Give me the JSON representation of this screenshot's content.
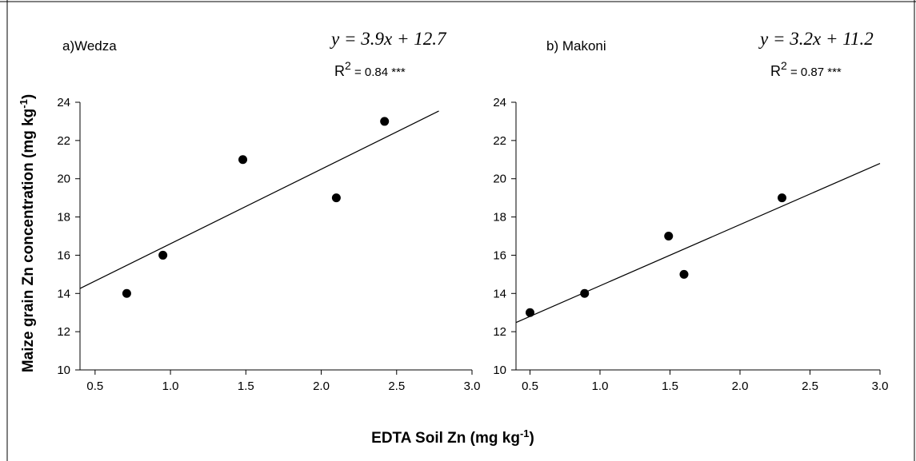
{
  "figure": {
    "ylabel": "Maize grain Zn concentration (mg kg",
    "ylabel_sup": "-1",
    "ylabel_end": ")",
    "xlabel": "EDTA Soil Zn (mg kg",
    "xlabel_sup": "-1",
    "xlabel_end": ")"
  },
  "chart_data": [
    {
      "type": "scatter",
      "panel_label": "a)Wedza",
      "equation": "y = 3.9x + 12.7",
      "r2_label": "R",
      "r2_sup": "2",
      "r2_value": " = 0.84 ***",
      "x": [
        0.71,
        0.95,
        1.48,
        2.1,
        2.42
      ],
      "y": [
        14,
        16,
        21,
        19,
        23
      ],
      "fit": {
        "slope": 3.9,
        "intercept": 12.7,
        "x_range": [
          0.4,
          2.78
        ]
      },
      "xlim": [
        0.4,
        3.0
      ],
      "ylim": [
        10,
        24
      ],
      "xticks": [
        "0.5",
        "1.0",
        "1.5",
        "2.0",
        "2.5",
        "3.0"
      ],
      "yticks": [
        "10",
        "12",
        "14",
        "16",
        "18",
        "20",
        "22",
        "24"
      ],
      "grid": false
    },
    {
      "type": "scatter",
      "panel_label": "b) Makoni",
      "equation": "y = 3.2x + 11.2",
      "r2_label": "R",
      "r2_sup": "2",
      "r2_value": " = 0.87 ***",
      "x": [
        0.5,
        0.89,
        1.49,
        1.6,
        2.3
      ],
      "y": [
        13,
        14,
        17,
        15,
        19
      ],
      "fit": {
        "slope": 3.2,
        "intercept": 11.2,
        "x_range": [
          0.4,
          3.0
        ]
      },
      "xlim": [
        0.4,
        3.0
      ],
      "ylim": [
        10,
        24
      ],
      "xticks": [
        "0.5",
        "1.0",
        "1.5",
        "2.0",
        "2.5",
        "3.0"
      ],
      "yticks": [
        "10",
        "12",
        "14",
        "16",
        "18",
        "20",
        "22",
        "24"
      ],
      "grid": false
    }
  ]
}
